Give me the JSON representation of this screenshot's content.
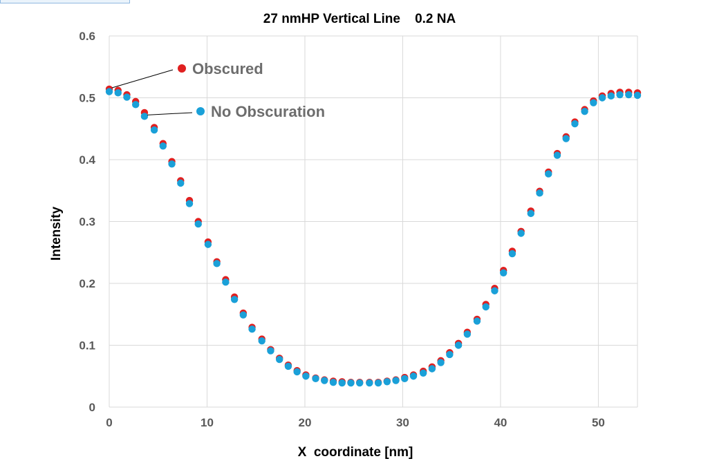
{
  "chart_data": {
    "type": "scatter",
    "title": "27 nmHP Vertical Line    0.2 NA",
    "xlabel": "X  coordinate [nm]",
    "ylabel": "Intensity",
    "xlim": [
      0,
      54
    ],
    "ylim": [
      0,
      0.6
    ],
    "x_ticks": [
      "0",
      "10",
      "20",
      "30",
      "40",
      "50"
    ],
    "y_ticks": [
      "0",
      "0.1",
      "0.2",
      "0.3",
      "0.4",
      "0.5",
      "0.6"
    ],
    "grid": true,
    "legend": "annotated-callouts-top-left",
    "series": [
      {
        "name": "Obscured",
        "color": "#e02020",
        "x": [
          0,
          0.9,
          1.8,
          2.7,
          3.6,
          4.6,
          5.5,
          6.4,
          7.3,
          8.2,
          9.1,
          10.1,
          11.0,
          11.9,
          12.8,
          13.7,
          14.6,
          15.6,
          16.5,
          17.4,
          18.3,
          19.2,
          20.1,
          21.1,
          22.0,
          22.9,
          23.8,
          24.7,
          25.6,
          26.6,
          27.5,
          28.4,
          29.3,
          30.2,
          31.1,
          32.1,
          33.0,
          33.9,
          34.8,
          35.7,
          36.6,
          37.6,
          38.5,
          39.4,
          40.3,
          41.2,
          42.1,
          43.1,
          44.0,
          44.9,
          45.8,
          46.7,
          47.6,
          48.6,
          49.5,
          50.4,
          51.3,
          52.2,
          53.1,
          54.0
        ],
        "y": [
          0.514,
          0.512,
          0.505,
          0.494,
          0.476,
          0.452,
          0.426,
          0.397,
          0.366,
          0.334,
          0.3,
          0.267,
          0.235,
          0.206,
          0.178,
          0.152,
          0.129,
          0.11,
          0.093,
          0.079,
          0.068,
          0.059,
          0.052,
          0.047,
          0.044,
          0.042,
          0.041,
          0.04,
          0.04,
          0.04,
          0.04,
          0.042,
          0.044,
          0.048,
          0.052,
          0.058,
          0.065,
          0.075,
          0.088,
          0.103,
          0.121,
          0.142,
          0.166,
          0.192,
          0.221,
          0.252,
          0.284,
          0.317,
          0.349,
          0.38,
          0.41,
          0.437,
          0.461,
          0.481,
          0.495,
          0.503,
          0.507,
          0.509,
          0.509,
          0.508
        ]
      },
      {
        "name": "No Obscuration",
        "color": "#1aa0d8",
        "x": [
          0,
          0.9,
          1.8,
          2.7,
          3.6,
          4.6,
          5.5,
          6.4,
          7.3,
          8.2,
          9.1,
          10.1,
          11.0,
          11.9,
          12.8,
          13.7,
          14.6,
          15.6,
          16.5,
          17.4,
          18.3,
          19.2,
          20.1,
          21.1,
          22.0,
          22.9,
          23.8,
          24.7,
          25.6,
          26.6,
          27.5,
          28.4,
          29.3,
          30.2,
          31.1,
          32.1,
          33.0,
          33.9,
          34.8,
          35.7,
          36.6,
          37.6,
          38.5,
          39.4,
          40.3,
          41.2,
          42.1,
          43.1,
          44.0,
          44.9,
          45.8,
          46.7,
          47.6,
          48.6,
          49.5,
          50.4,
          51.3,
          52.2,
          53.1,
          54.0
        ],
        "y": [
          0.51,
          0.508,
          0.501,
          0.489,
          0.47,
          0.448,
          0.422,
          0.393,
          0.362,
          0.329,
          0.296,
          0.263,
          0.232,
          0.202,
          0.174,
          0.149,
          0.126,
          0.107,
          0.091,
          0.077,
          0.066,
          0.057,
          0.05,
          0.046,
          0.043,
          0.04,
          0.039,
          0.039,
          0.039,
          0.039,
          0.039,
          0.041,
          0.043,
          0.046,
          0.05,
          0.055,
          0.062,
          0.072,
          0.085,
          0.1,
          0.118,
          0.139,
          0.162,
          0.188,
          0.217,
          0.248,
          0.281,
          0.313,
          0.346,
          0.377,
          0.407,
          0.434,
          0.458,
          0.478,
          0.492,
          0.5,
          0.503,
          0.505,
          0.505,
          0.504
        ]
      }
    ],
    "annotations": [
      {
        "text": "Obscured",
        "series": 0,
        "target_index": 0
      },
      {
        "text": "No Obscuration",
        "series": 1,
        "target_index": 4
      }
    ]
  }
}
